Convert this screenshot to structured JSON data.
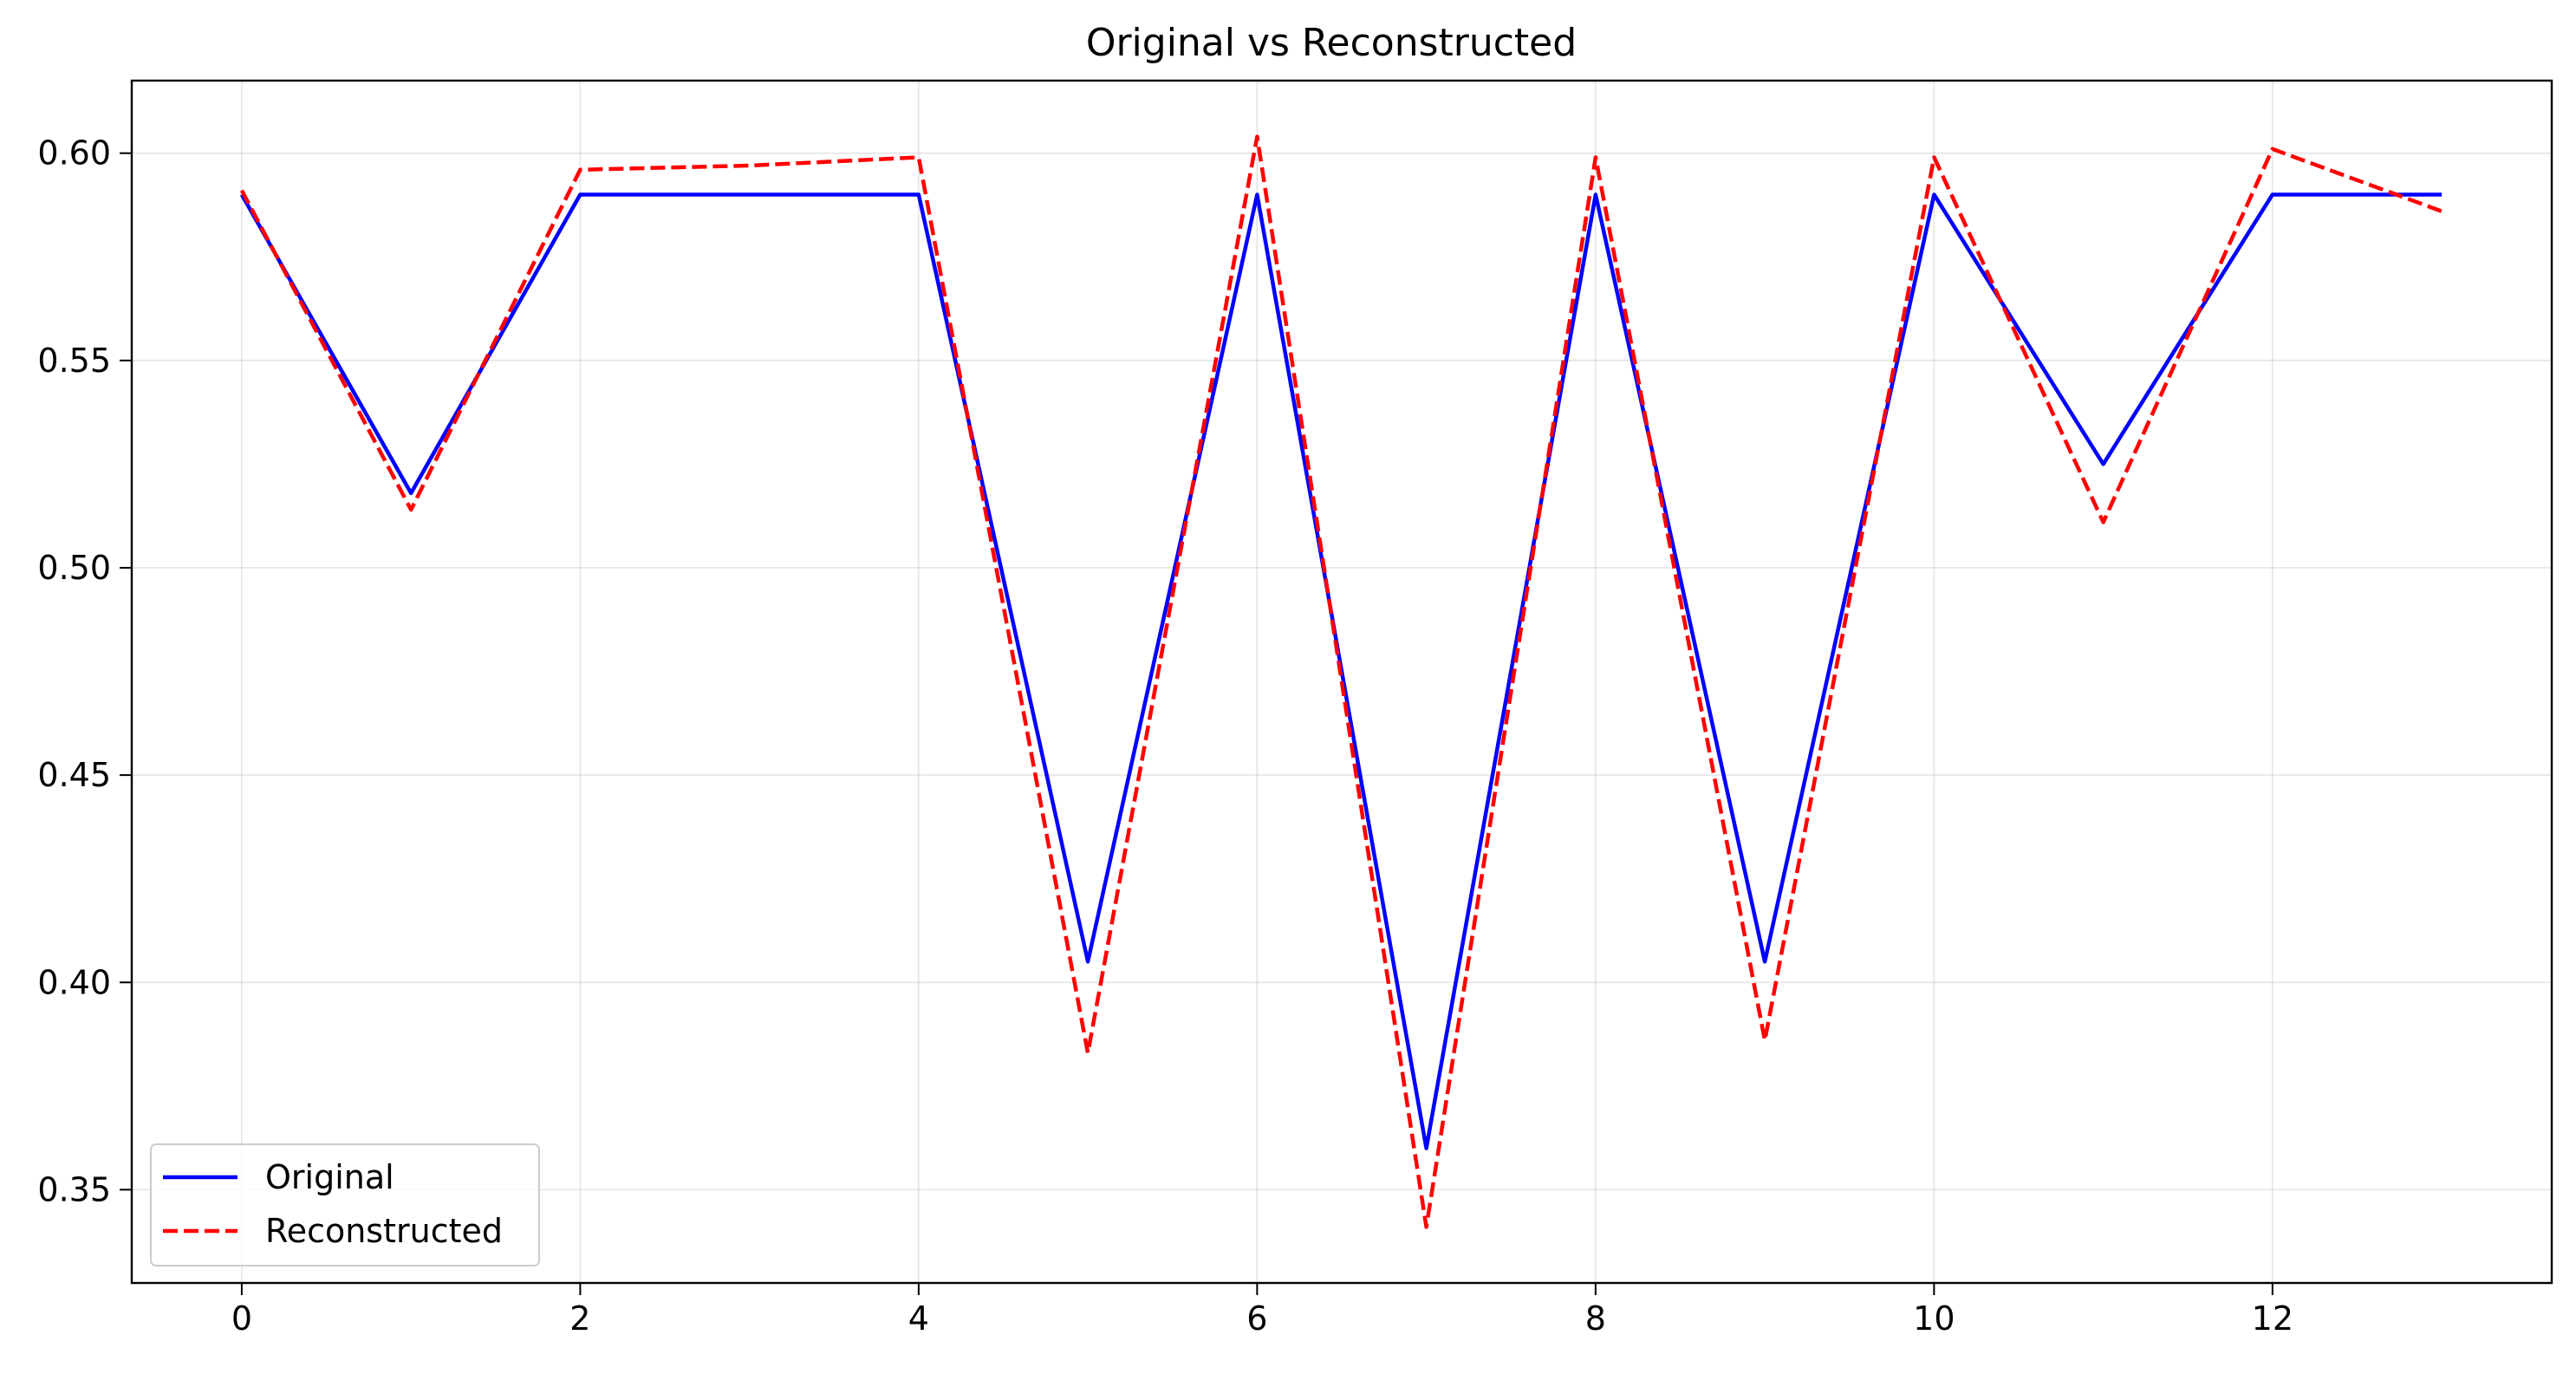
{
  "chart_data": {
    "type": "line",
    "title": "Original vs Reconstructed",
    "xlabel": "",
    "ylabel": "",
    "xlim": [
      -0.65,
      13.65
    ],
    "ylim": [
      0.3275,
      0.6175
    ],
    "x_ticks": [
      0,
      2,
      4,
      6,
      8,
      10,
      12
    ],
    "x_tick_labels": [
      "0",
      "2",
      "4",
      "6",
      "8",
      "10",
      "12"
    ],
    "y_ticks": [
      0.35,
      0.4,
      0.45,
      0.5,
      0.55,
      0.6
    ],
    "y_tick_labels": [
      "0.35",
      "0.40",
      "0.45",
      "0.50",
      "0.55",
      "0.60"
    ],
    "grid": true,
    "legend_position": "lower-left",
    "x": [
      0,
      1,
      2,
      3,
      4,
      5,
      6,
      7,
      8,
      9,
      10,
      11,
      12,
      13
    ],
    "series": [
      {
        "name": "Original",
        "color": "#0000ff",
        "style": "solid",
        "values": [
          0.59,
          0.518,
          0.59,
          0.59,
          0.59,
          0.405,
          0.59,
          0.36,
          0.59,
          0.405,
          0.59,
          0.525,
          0.59,
          0.59
        ]
      },
      {
        "name": "Reconstructed",
        "color": "#ff0000",
        "style": "dashed",
        "values": [
          0.591,
          0.514,
          0.596,
          0.597,
          0.599,
          0.383,
          0.604,
          0.341,
          0.599,
          0.386,
          0.599,
          0.511,
          0.601,
          0.586
        ]
      }
    ]
  }
}
